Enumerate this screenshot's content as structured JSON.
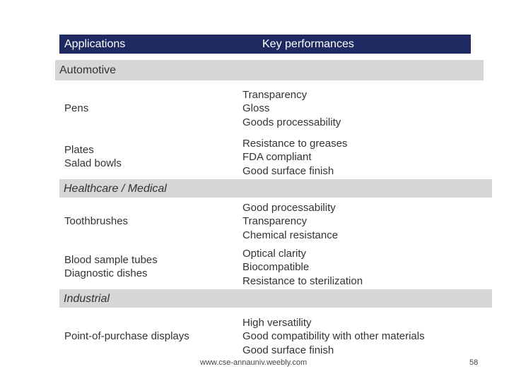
{
  "header": {
    "applications": "Applications",
    "key_performances": "Key performances"
  },
  "sections": [
    {
      "title": "Automotive",
      "rows": [
        {
          "application": [
            "Pens"
          ],
          "performances": [
            "Transparency",
            "Gloss",
            "Goods processability"
          ]
        },
        {
          "application": [
            "Plates",
            "Salad bowls"
          ],
          "performances": [
            "Resistance to greases",
            "FDA compliant",
            "Good surface finish"
          ]
        }
      ]
    },
    {
      "title": "Healthcare / Medical",
      "rows": [
        {
          "application": [
            "Toothbrushes"
          ],
          "performances": [
            "Good processability",
            "Transparency",
            "Chemical resistance"
          ]
        },
        {
          "application": [
            "Blood sample tubes",
            "Diagnostic dishes"
          ],
          "performances": [
            "Optical clarity",
            "Biocompatible",
            "Resistance to sterilization"
          ]
        }
      ]
    },
    {
      "title": "Industrial",
      "rows": [
        {
          "application": [
            "Point-of-purchase displays"
          ],
          "performances": [
            "High versatility",
            "Good compatibility with other materials",
            "Good surface finish"
          ]
        }
      ]
    }
  ],
  "footer": {
    "url": "www.cse-annauniv.weebly.com",
    "page_number": "58"
  }
}
